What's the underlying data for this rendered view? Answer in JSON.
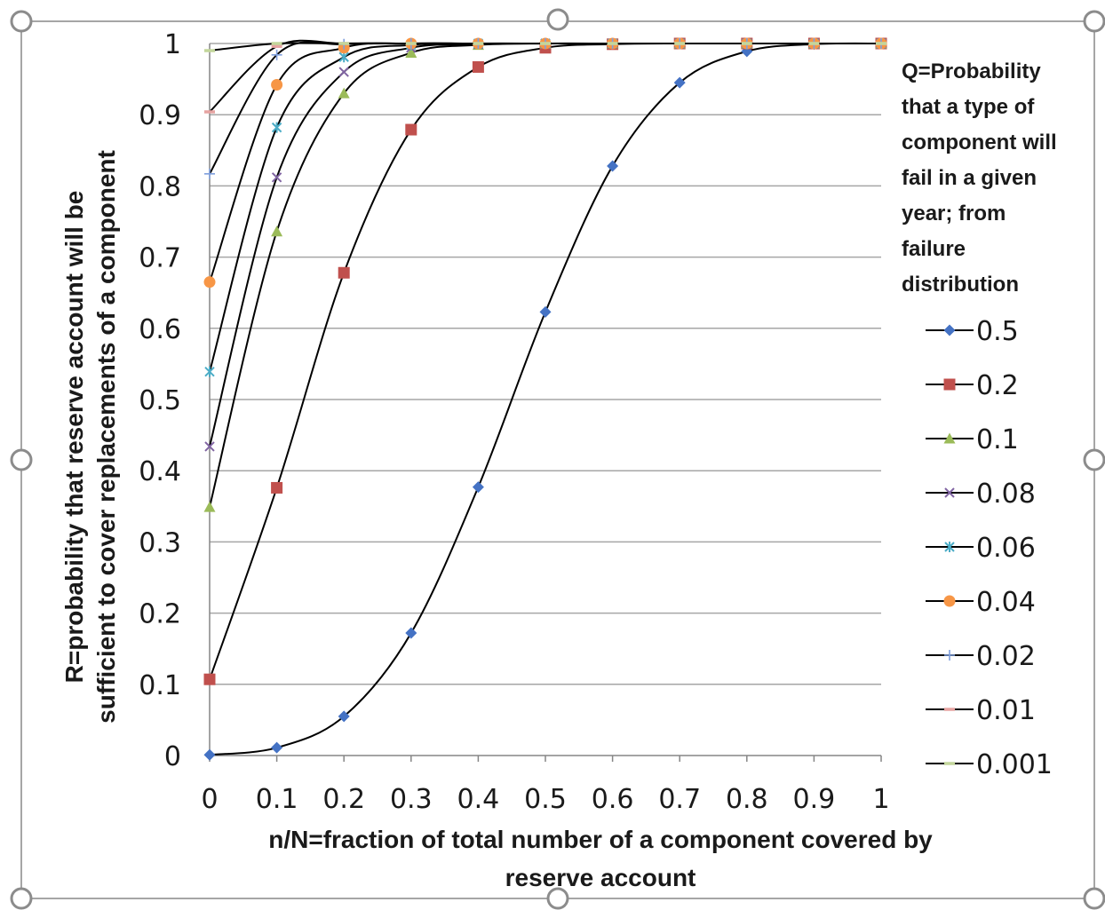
{
  "chart_data": {
    "type": "line",
    "title": "",
    "xlabel_lines": [
      "n/N=fraction  of total number of a component covered  by",
      "reserve account"
    ],
    "ylabel_lines": [
      "R=probability that reserve account will be",
      "sufficient to cover replacements of a component"
    ],
    "xlim": [
      0,
      1
    ],
    "ylim": [
      0,
      1
    ],
    "xticks": [
      "0",
      "0.1",
      "0.2",
      "0.3",
      "0.4",
      "0.5",
      "0.6",
      "0.7",
      "0.8",
      "0.9",
      "1"
    ],
    "yticks": [
      "0",
      "0.1",
      "0.2",
      "0.3",
      "0.4",
      "0.5",
      "0.6",
      "0.7",
      "0.8",
      "0.9",
      "1"
    ],
    "grid": true,
    "legend_position": "right",
    "legend_title_lines": [
      "Q=Probability",
      "that a type of",
      "component will",
      "fail in a given",
      "year; from",
      "failure",
      "distribution"
    ],
    "x": [
      0,
      0.1,
      0.2,
      0.3,
      0.4,
      0.5,
      0.6,
      0.7,
      0.8,
      0.9,
      1
    ],
    "series": [
      {
        "name": "0.5",
        "color": "#4472c4",
        "marker": "diamond",
        "values": [
          0.001,
          0.011,
          0.055,
          0.172,
          0.377,
          0.623,
          0.828,
          0.945,
          0.989,
          0.999,
          1.0
        ]
      },
      {
        "name": "0.2",
        "color": "#c0504d",
        "marker": "square",
        "values": [
          0.107,
          0.376,
          0.678,
          0.879,
          0.967,
          0.994,
          0.999,
          1.0,
          1.0,
          1.0,
          1.0
        ]
      },
      {
        "name": "0.1",
        "color": "#9bbb59",
        "marker": "triangle",
        "values": [
          0.349,
          0.736,
          0.93,
          0.987,
          0.998,
          1.0,
          1.0,
          1.0,
          1.0,
          1.0,
          1.0
        ]
      },
      {
        "name": "0.08",
        "color": "#8064a2",
        "marker": "x",
        "values": [
          0.434,
          0.812,
          0.96,
          0.994,
          0.999,
          1.0,
          1.0,
          1.0,
          1.0,
          1.0,
          1.0
        ]
      },
      {
        "name": "0.06",
        "color": "#4bacc6",
        "marker": "asterisk",
        "values": [
          0.539,
          0.882,
          0.981,
          0.998,
          1.0,
          1.0,
          1.0,
          1.0,
          1.0,
          1.0,
          1.0
        ]
      },
      {
        "name": "0.04",
        "color": "#f79646",
        "marker": "circle",
        "values": [
          0.665,
          0.942,
          0.994,
          1.0,
          1.0,
          1.0,
          1.0,
          1.0,
          1.0,
          1.0,
          1.0
        ]
      },
      {
        "name": "0.02",
        "color": "#7f9fde",
        "marker": "plus",
        "values": [
          0.817,
          0.984,
          0.999,
          1.0,
          1.0,
          1.0,
          1.0,
          1.0,
          1.0,
          1.0,
          1.0
        ]
      },
      {
        "name": "0.01",
        "color": "#e6a3a1",
        "marker": "dash",
        "values": [
          0.904,
          0.996,
          1.0,
          1.0,
          1.0,
          1.0,
          1.0,
          1.0,
          1.0,
          1.0,
          1.0
        ]
      },
      {
        "name": "0.001",
        "color": "#c3d69b",
        "marker": "dash",
        "values": [
          0.99,
          1.0,
          1.0,
          1.0,
          1.0,
          1.0,
          1.0,
          1.0,
          1.0,
          1.0,
          1.0
        ]
      }
    ]
  }
}
